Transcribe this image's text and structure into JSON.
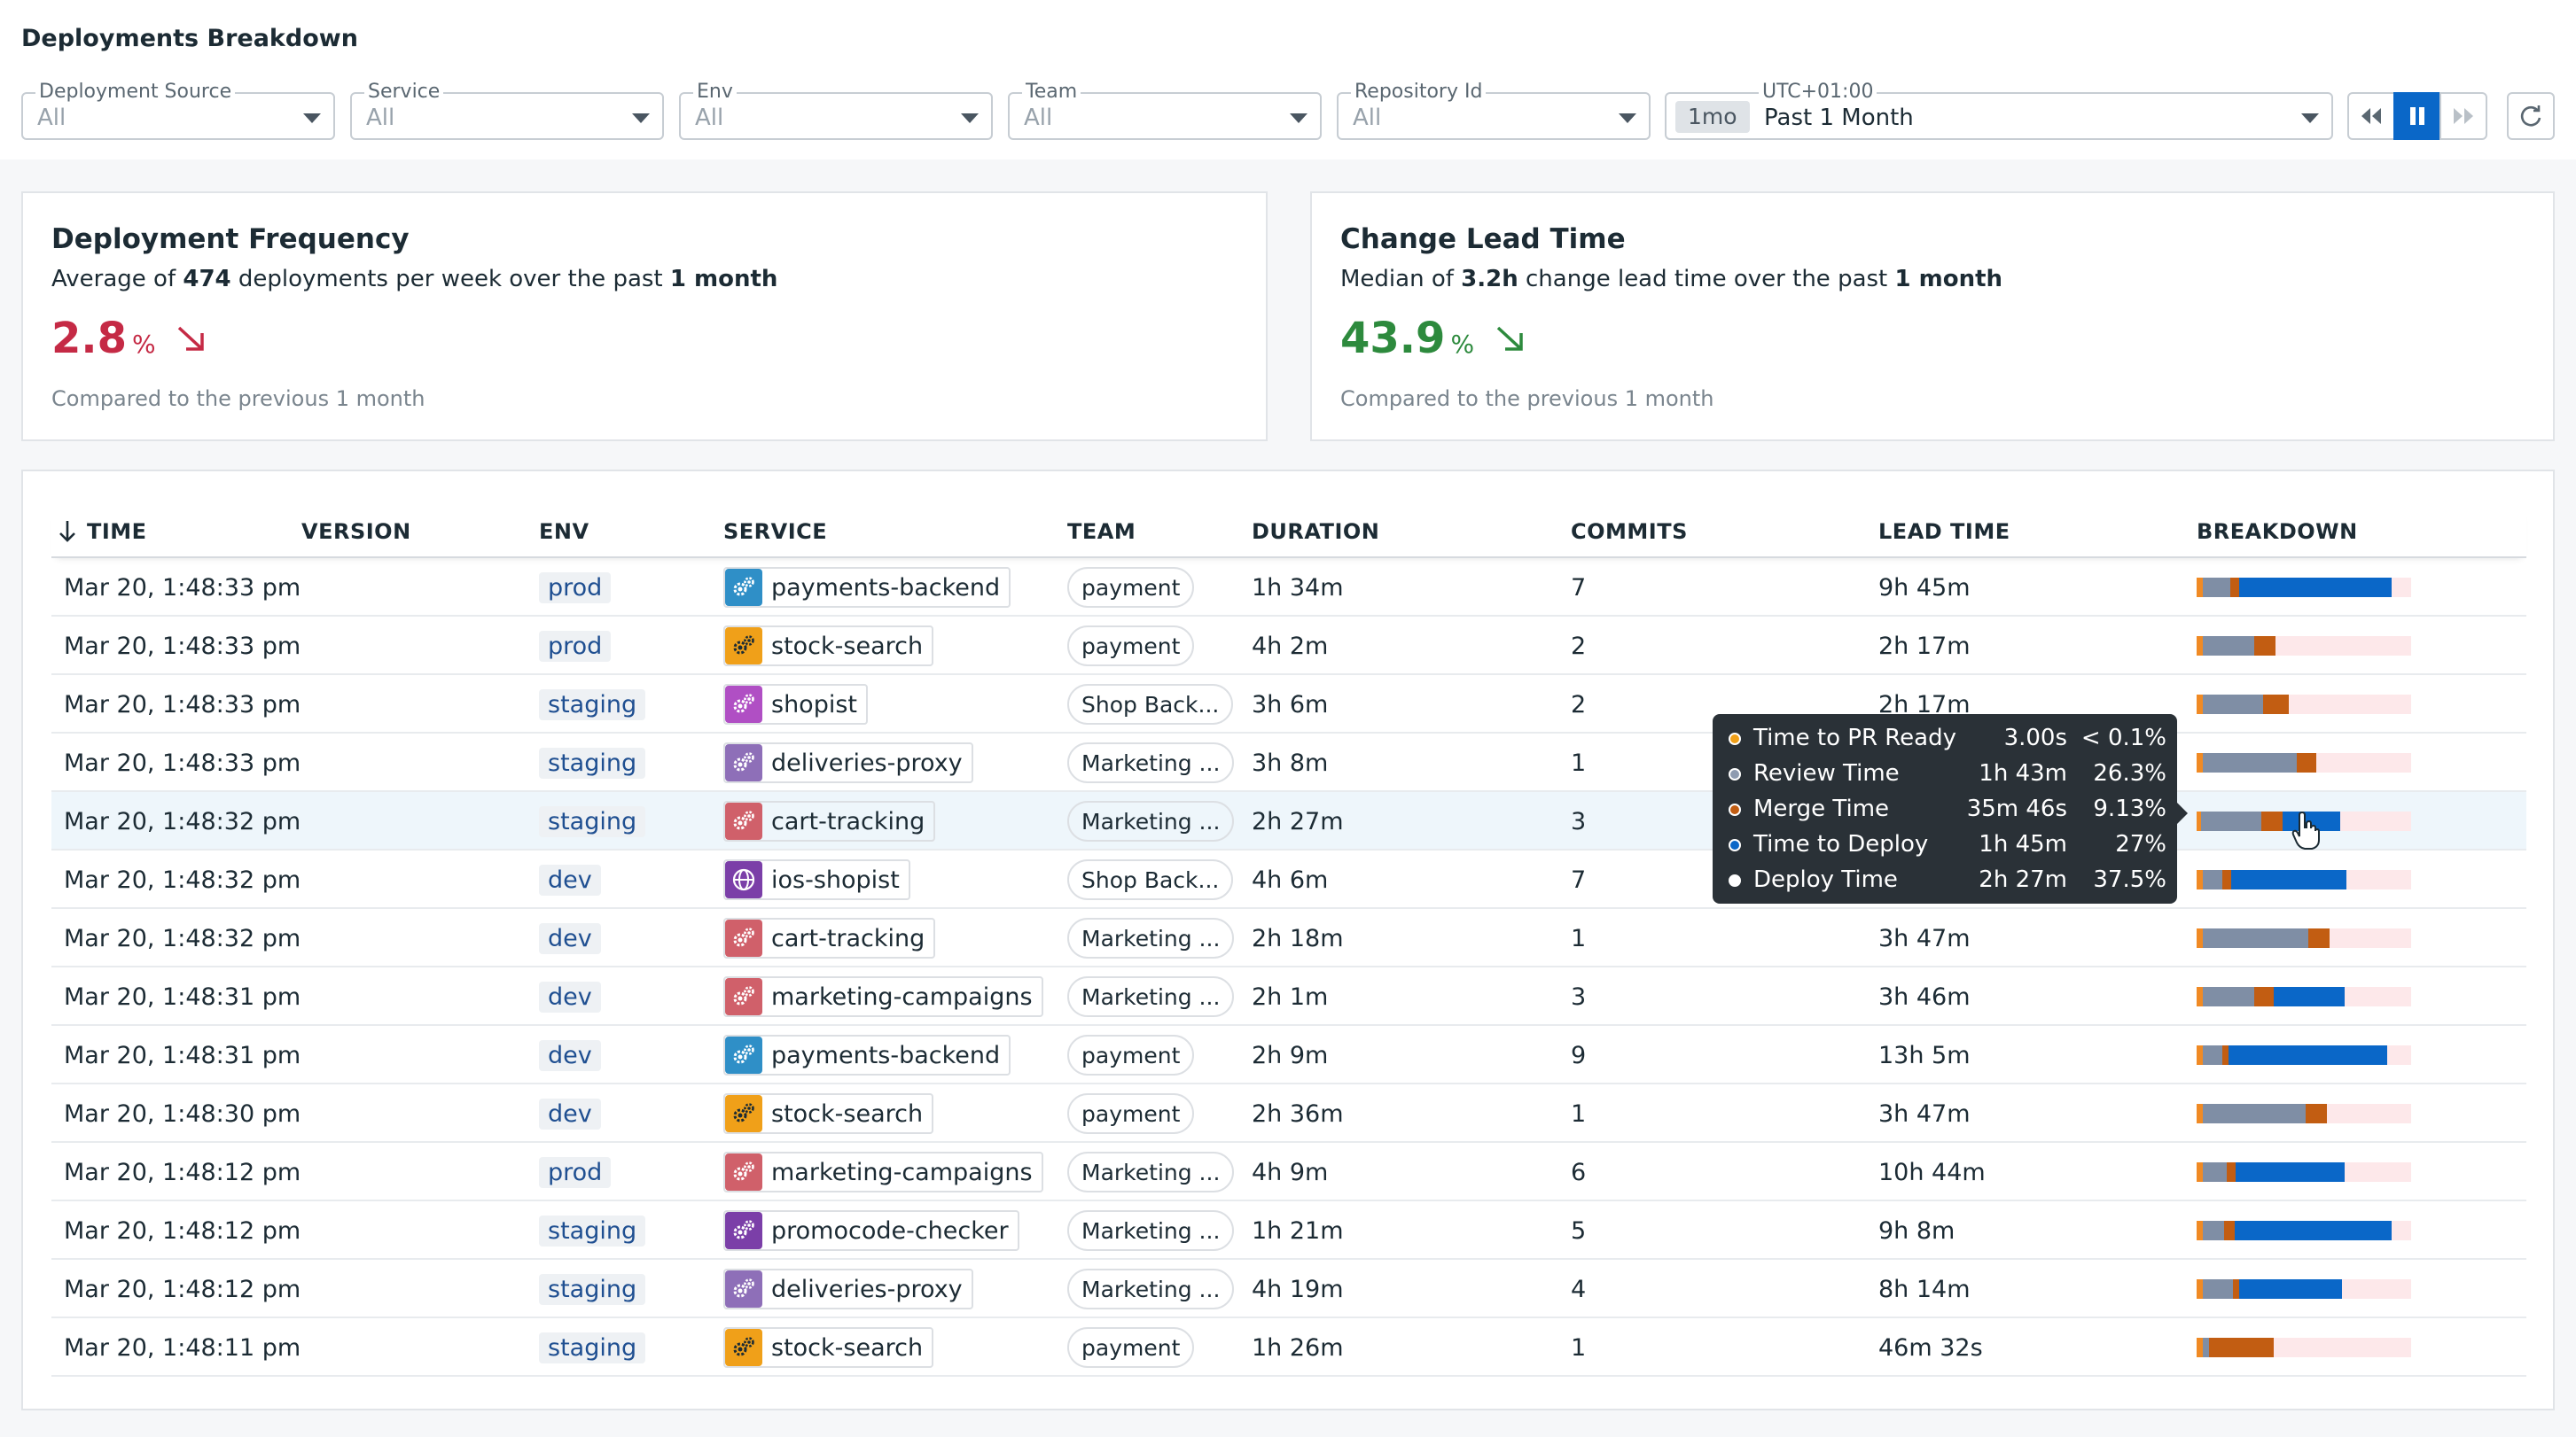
{
  "header": {
    "title": "Deployments Breakdown"
  },
  "filters": [
    {
      "label": "Deployment Source",
      "value": "All"
    },
    {
      "label": "Service",
      "value": "All"
    },
    {
      "label": "Env",
      "value": "All"
    },
    {
      "label": "Team",
      "value": "All"
    },
    {
      "label": "Repository Id",
      "value": "All"
    }
  ],
  "time_filter": {
    "timezone": "UTC+01:00",
    "chip": "1mo",
    "value": "Past 1 Month"
  },
  "controls": {
    "rewind_icon": "rewind-icon",
    "pause_icon": "pause-icon",
    "forward_icon": "fast-forward-icon",
    "refresh_icon": "refresh-icon"
  },
  "cards": {
    "frequency": {
      "title": "Deployment Frequency",
      "sub_pre": "Average of ",
      "sub_bold1": "474",
      "sub_mid": " deployments per week over the past ",
      "sub_bold2": "1 month",
      "value": "2.8",
      "unit": "%",
      "trend": "down",
      "color": "#c52a45",
      "footer": "Compared to the previous 1 month"
    },
    "lead_time": {
      "title": "Change Lead Time",
      "sub_pre": "Median of ",
      "sub_bold1": "3.2h",
      "sub_mid": " change lead time over the past ",
      "sub_bold2": "1 month",
      "value": "43.9",
      "unit": "%",
      "trend": "down",
      "color": "#2d8a3d",
      "footer": "Compared to the previous 1 month"
    }
  },
  "table": {
    "columns": [
      "TIME",
      "VERSION",
      "ENV",
      "SERVICE",
      "TEAM",
      "DURATION",
      "COMMITS",
      "LEAD TIME",
      "BREAKDOWN"
    ],
    "rows": [
      {
        "time": "Mar 20, 1:48:33 pm",
        "env": "prod",
        "service": "payments-backend",
        "svc_color": "#2f8fc7",
        "team": "payment",
        "duration": "1h 34m",
        "commits": "7",
        "lead": "9h 45m",
        "breakdown": [
          0.03,
          0.13,
          0.04,
          0.71,
          0.09
        ]
      },
      {
        "time": "Mar 20, 1:48:33 pm",
        "env": "prod",
        "service": "stock-search",
        "svc_color": "#f0a019",
        "team": "payment",
        "duration": "4h 2m",
        "commits": "2",
        "lead": "2h 17m",
        "breakdown": [
          0.03,
          0.24,
          0.1,
          0.0,
          0.63
        ]
      },
      {
        "time": "Mar 20, 1:48:33 pm",
        "env": "staging",
        "service": "shopist",
        "svc_color": "#b04fc4",
        "team": "Shop Back...",
        "duration": "3h 6m",
        "commits": "2",
        "lead": "2h 17m",
        "breakdown": [
          0.03,
          0.28,
          0.12,
          0.0,
          0.57
        ]
      },
      {
        "time": "Mar 20, 1:48:33 pm",
        "env": "staging",
        "service": "deliveries-proxy",
        "svc_color": "#8e6fb8",
        "team": "Marketing ...",
        "duration": "3h 8m",
        "commits": "1",
        "lead": "",
        "breakdown": [
          0.03,
          0.44,
          0.09,
          0.0,
          0.44
        ]
      },
      {
        "time": "Mar 20, 1:48:32 pm",
        "env": "staging",
        "service": "cart-tracking",
        "svc_color": "#d0606a",
        "team": "Marketing ...",
        "duration": "2h 27m",
        "commits": "3",
        "lead": "",
        "breakdown": [
          0.02,
          0.28,
          0.1,
          0.27,
          0.33
        ]
      },
      {
        "time": "Mar 20, 1:48:32 pm",
        "env": "dev",
        "service": "ios-shopist",
        "svc_color": "#7b3fa8",
        "team": "Shop Back...",
        "duration": "4h 6m",
        "commits": "7",
        "lead": "",
        "breakdown": [
          0.03,
          0.09,
          0.04,
          0.54,
          0.3
        ]
      },
      {
        "time": "Mar 20, 1:48:32 pm",
        "env": "dev",
        "service": "cart-tracking",
        "svc_color": "#d0606a",
        "team": "Marketing ...",
        "duration": "2h 18m",
        "commits": "1",
        "lead": "3h 47m",
        "breakdown": [
          0.03,
          0.49,
          0.1,
          0.0,
          0.38
        ]
      },
      {
        "time": "Mar 20, 1:48:31 pm",
        "env": "dev",
        "service": "marketing-campaigns",
        "svc_color": "#d0606a",
        "team": "Marketing ...",
        "duration": "2h 1m",
        "commits": "3",
        "lead": "3h 46m",
        "breakdown": [
          0.03,
          0.24,
          0.09,
          0.33,
          0.31
        ]
      },
      {
        "time": "Mar 20, 1:48:31 pm",
        "env": "dev",
        "service": "payments-backend",
        "svc_color": "#2f8fc7",
        "team": "payment",
        "duration": "2h 9m",
        "commits": "9",
        "lead": "13h 5m",
        "breakdown": [
          0.03,
          0.09,
          0.03,
          0.74,
          0.11
        ]
      },
      {
        "time": "Mar 20, 1:48:30 pm",
        "env": "dev",
        "service": "stock-search",
        "svc_color": "#f0a019",
        "team": "payment",
        "duration": "2h 36m",
        "commits": "1",
        "lead": "3h 47m",
        "breakdown": [
          0.03,
          0.48,
          0.1,
          0.0,
          0.39
        ]
      },
      {
        "time": "Mar 20, 1:48:12 pm",
        "env": "prod",
        "service": "marketing-campaigns",
        "svc_color": "#d0606a",
        "team": "Marketing ...",
        "duration": "4h 9m",
        "commits": "6",
        "lead": "10h 44m",
        "breakdown": [
          0.03,
          0.11,
          0.04,
          0.51,
          0.31
        ]
      },
      {
        "time": "Mar 20, 1:48:12 pm",
        "env": "staging",
        "service": "promocode-checker",
        "svc_color": "#7b3fa8",
        "team": "Marketing ...",
        "duration": "1h 21m",
        "commits": "5",
        "lead": "9h 8m",
        "breakdown": [
          0.03,
          0.1,
          0.05,
          0.73,
          0.09
        ]
      },
      {
        "time": "Mar 20, 1:48:12 pm",
        "env": "staging",
        "service": "deliveries-proxy",
        "svc_color": "#8e6fb8",
        "team": "Marketing ...",
        "duration": "4h 19m",
        "commits": "4",
        "lead": "8h 14m",
        "breakdown": [
          0.03,
          0.14,
          0.03,
          0.48,
          0.32
        ]
      },
      {
        "time": "Mar 20, 1:48:11 pm",
        "env": "staging",
        "service": "stock-search",
        "svc_color": "#f0a019",
        "team": "payment",
        "duration": "1h 26m",
        "commits": "1",
        "lead": "46m 32s",
        "breakdown": [
          0.03,
          0.03,
          0.3,
          0.0,
          0.64
        ]
      }
    ]
  },
  "breakdown_colors": [
    "#f08a24",
    "#7f8ea5",
    "#c25d12",
    "#0a67c8",
    "#fde8ea"
  ],
  "tooltip": {
    "items": [
      {
        "label": "Time to PR Ready",
        "value": "3.00s",
        "pct": "< 0.1%",
        "color": "#f0a019"
      },
      {
        "label": "Review Time",
        "value": "1h 43m",
        "pct": "26.3%",
        "color": "#8e9bb0"
      },
      {
        "label": "Merge Time",
        "value": "35m 46s",
        "pct": "9.13%",
        "color": "#c25d12"
      },
      {
        "label": "Time to Deploy",
        "value": "1h 45m",
        "pct": "27%",
        "color": "#0a67c8"
      },
      {
        "label": "Deploy Time",
        "value": "2h 27m",
        "pct": "37.5%",
        "color": "#ffffff"
      }
    ]
  }
}
